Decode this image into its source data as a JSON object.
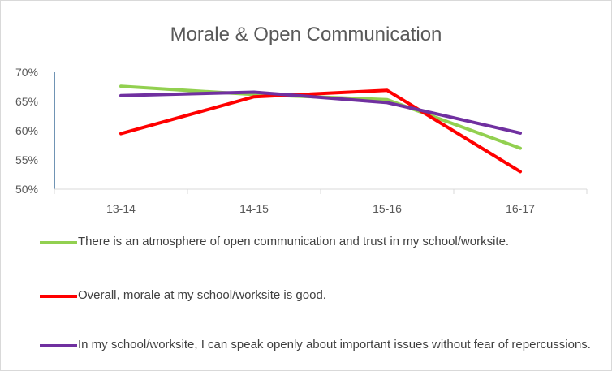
{
  "chart_data": {
    "type": "line",
    "title": "Morale & Open Communication",
    "categories": [
      "13-14",
      "14-15",
      "15-16",
      "16-17"
    ],
    "ylim": [
      50,
      70
    ],
    "yticks": [
      50,
      55,
      60,
      65,
      70
    ],
    "ytick_labels": [
      "50%",
      "55%",
      "60%",
      "65%",
      "70%"
    ],
    "grid": false,
    "legend_position": "bottom",
    "series": [
      {
        "name": "There is an atmosphere of open communication and trust in my school/worksite.",
        "values": [
          67.6,
          66.2,
          65.3,
          57.0
        ],
        "color": "#92D050"
      },
      {
        "name": "Overall, morale at my school/worksite is good.",
        "values": [
          59.5,
          65.8,
          66.9,
          53.0
        ],
        "color": "#FF0000"
      },
      {
        "name": "In my school/worksite, I can speak openly about important issues without fear of repercussions.",
        "values": [
          66.0,
          66.6,
          64.8,
          59.6
        ],
        "color": "#7030A0"
      }
    ]
  }
}
